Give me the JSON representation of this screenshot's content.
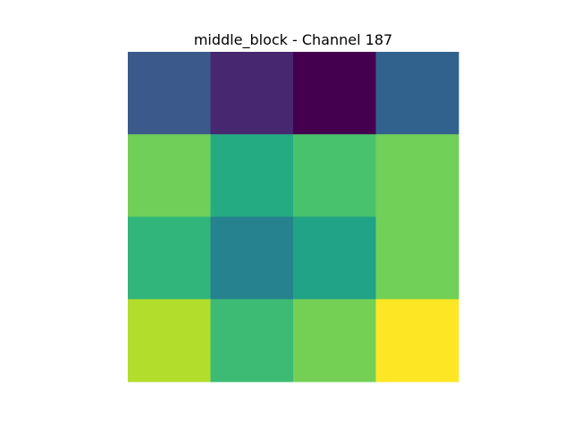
{
  "chart_data": {
    "type": "heatmap",
    "title": "middle_block - Channel 187",
    "xlabel": "",
    "ylabel": "",
    "colormap": "viridis",
    "axes_visible": false,
    "grid": false,
    "rows": 4,
    "cols": 4,
    "values": [
      [
        0.27,
        0.1,
        0.0,
        0.3
      ],
      [
        0.78,
        0.58,
        0.69,
        0.78
      ],
      [
        0.63,
        0.42,
        0.57,
        0.78
      ],
      [
        0.9,
        0.66,
        0.77,
        1.0
      ]
    ],
    "colors": [
      [
        "#3b5a8b",
        "#47276f",
        "#44004e",
        "#31628d"
      ],
      [
        "#70cf58",
        "#25ab82",
        "#48c26c",
        "#71d057"
      ],
      [
        "#31b57a",
        "#26828e",
        "#20a386",
        "#71d057"
      ],
      [
        "#b2dd2d",
        "#3dbb75",
        "#74d055",
        "#fde725"
      ]
    ]
  }
}
